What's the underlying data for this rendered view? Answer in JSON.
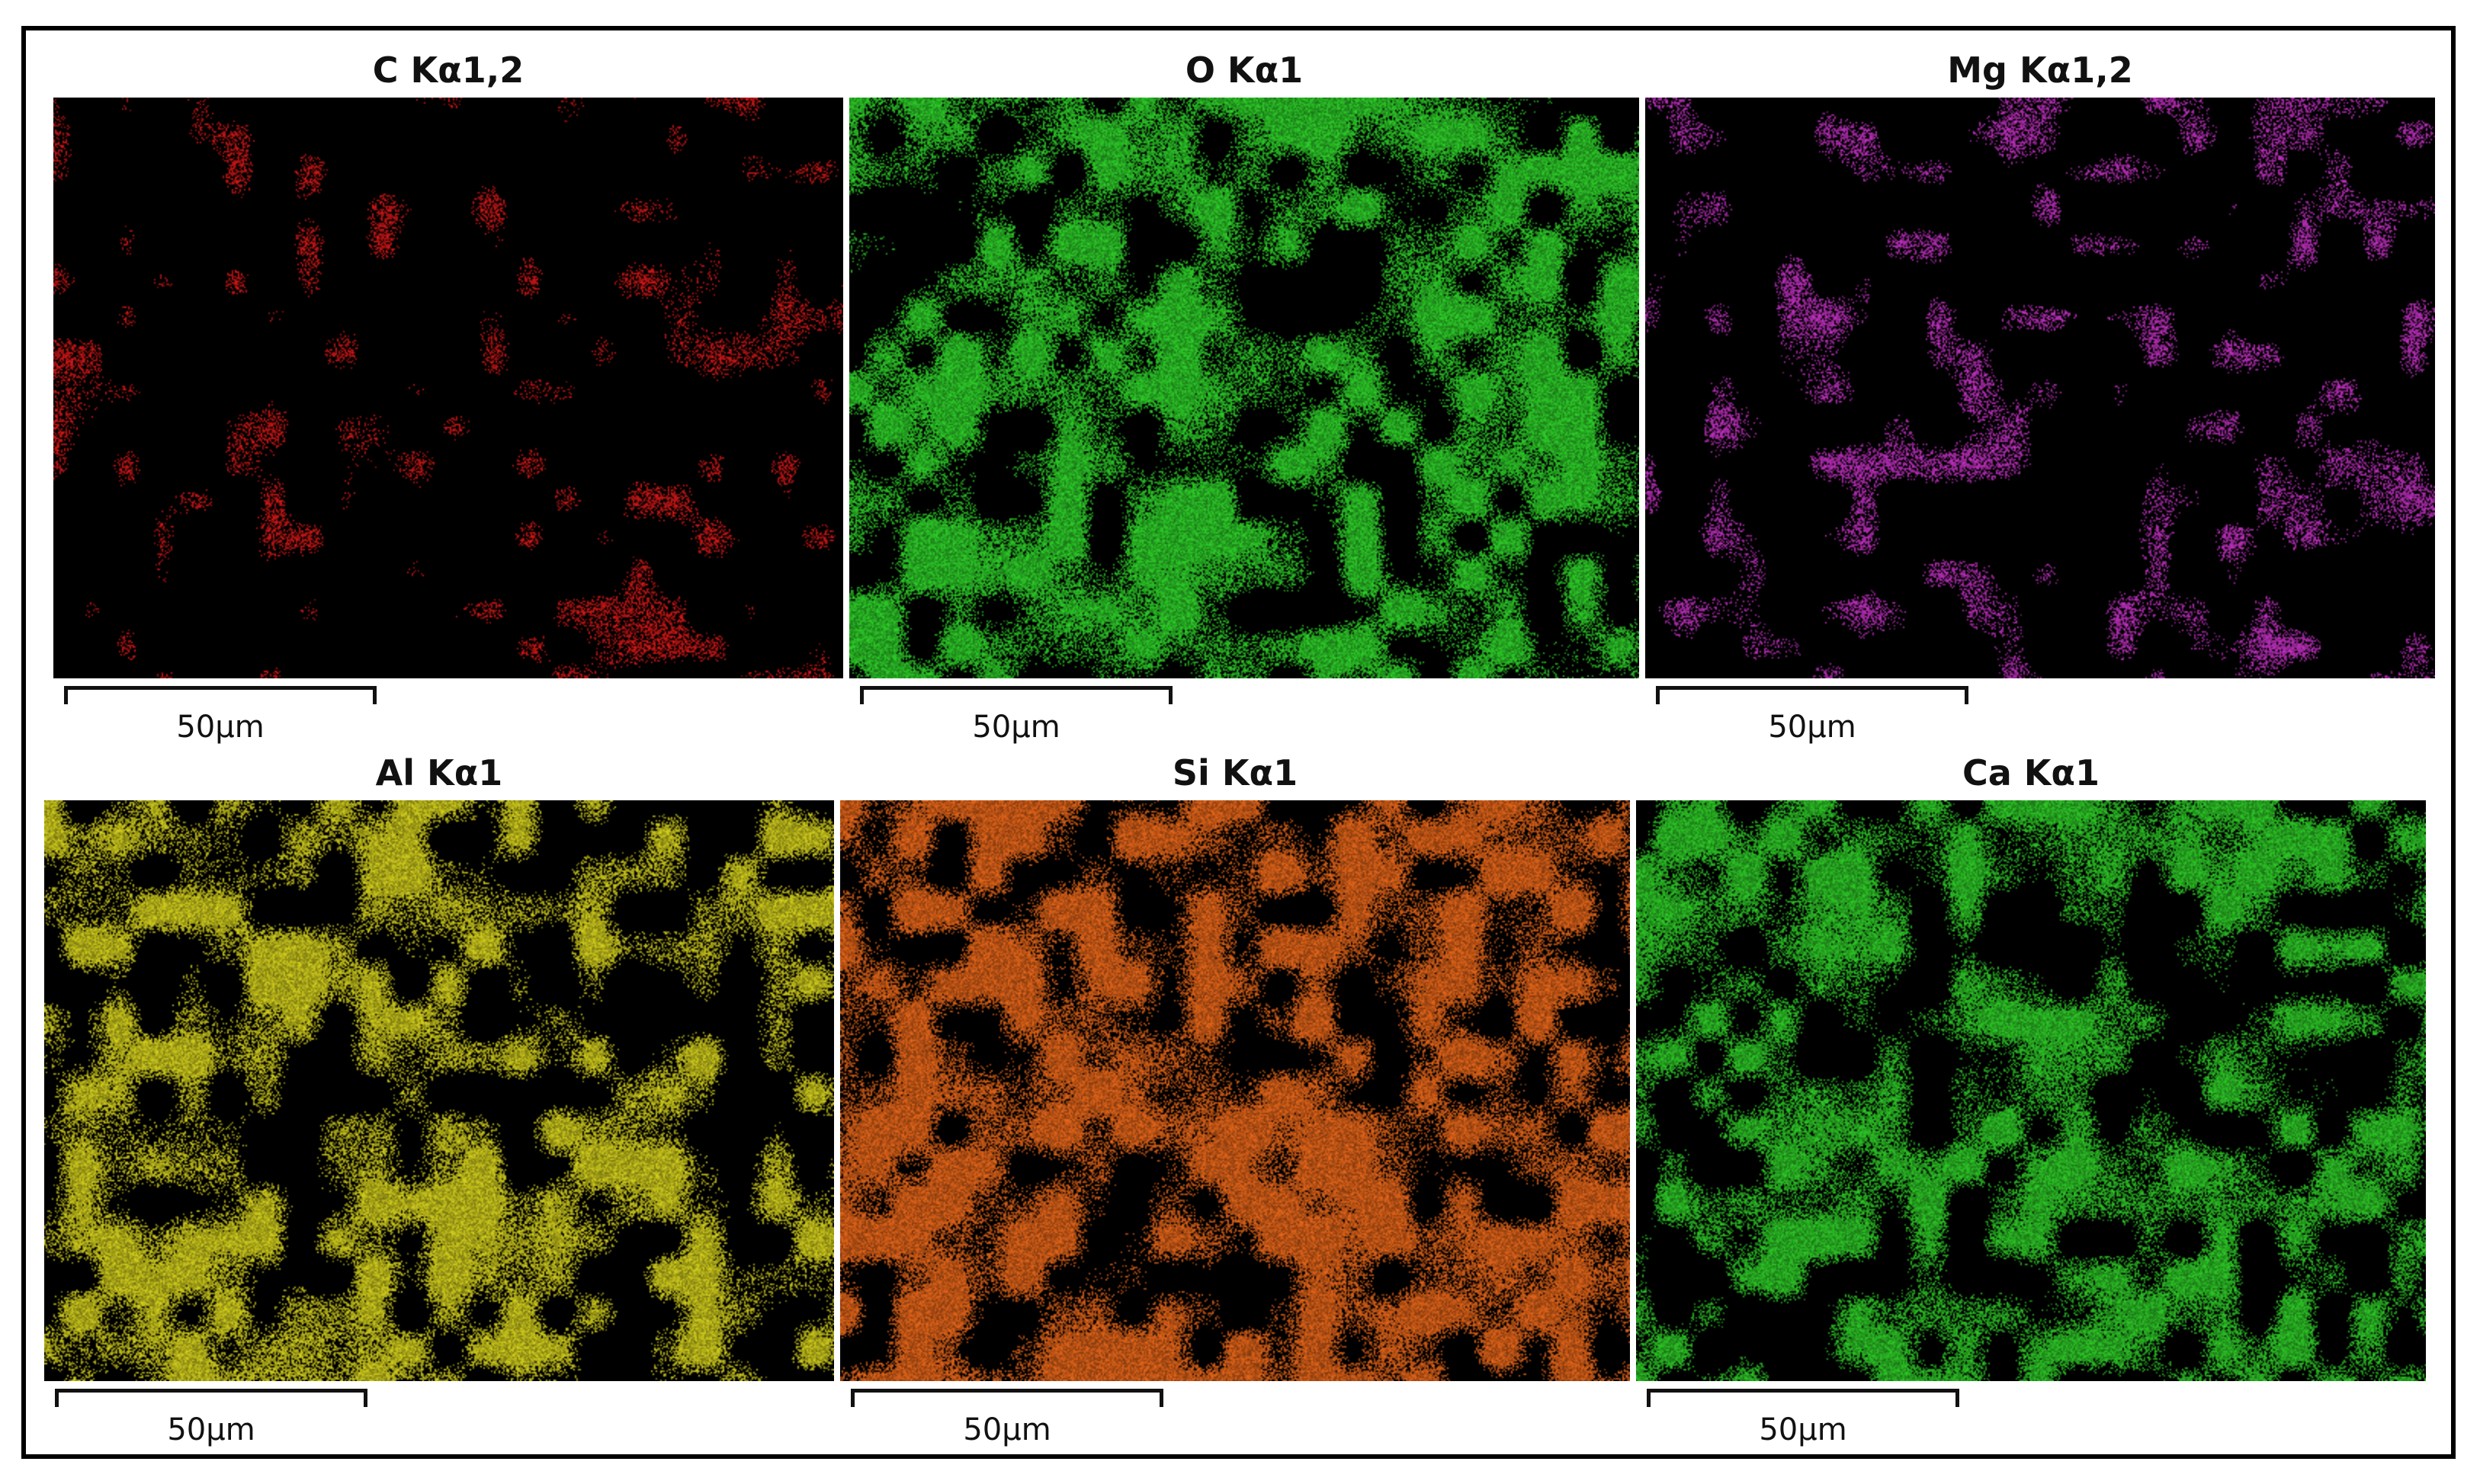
{
  "figure": {
    "panels": [
      {
        "title": "C Kα1,2",
        "color": "#e01818",
        "scale_label": "50µm",
        "density": 0.28
      },
      {
        "title": "O Kα1",
        "color": "#2fd22a",
        "scale_label": "50µm",
        "density": 0.62
      },
      {
        "title": "Mg Kα1,2",
        "color": "#c832c8",
        "scale_label": "50µm",
        "density": 0.33
      },
      {
        "title": "Al Kα1",
        "color": "#d6d21e",
        "scale_label": "50µm",
        "density": 0.6
      },
      {
        "title": "Si Kα1",
        "color": "#e8671a",
        "scale_label": "50µm",
        "density": 0.66
      },
      {
        "title": "Ca Kα1",
        "color": "#2fcc28",
        "scale_label": "50µm",
        "density": 0.58
      }
    ]
  }
}
